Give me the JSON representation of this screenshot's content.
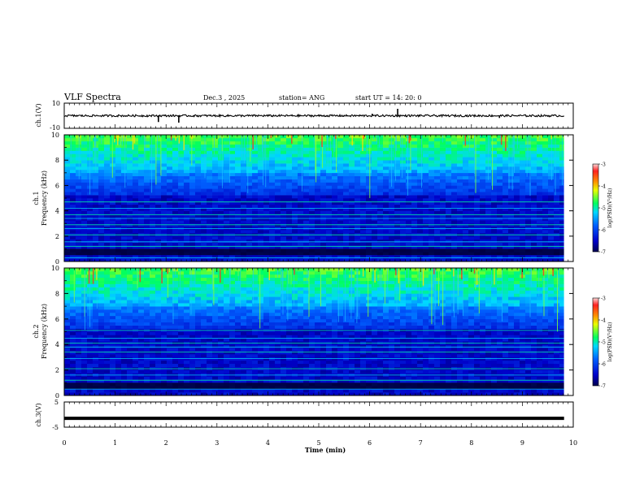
{
  "chart_data": {
    "type": "heatmap",
    "title": "VLF Spectra",
    "date": "Dec.3 , 2025",
    "station": "station= ANG",
    "start": "start UT = 14: 20: 0",
    "xlabel": "Time (min)",
    "xlim": [
      0,
      10
    ],
    "xticks": [
      "0",
      "1",
      "2",
      "3",
      "4",
      "5",
      "6",
      "7",
      "8",
      "9",
      "10"
    ],
    "panels": {
      "ch1_waveform": {
        "ylabel": "ch.1(V)",
        "ylim": [
          -10,
          10
        ],
        "yticks": [
          "10",
          "-10"
        ],
        "trace_level": 0,
        "spikes": [
          {
            "t": 1.85,
            "v": -5.0
          },
          {
            "t": 2.25,
            "v": -5.5
          },
          {
            "t": 6.55,
            "v": 5.5
          },
          {
            "t": 6.05,
            "v": 1.6
          },
          {
            "t": 8.55,
            "v": -1.8
          }
        ]
      },
      "ch1_spectrogram": {
        "ylabel_top": "ch.1",
        "ylabel": "Frequency (kHz)",
        "ylim": [
          0,
          10
        ],
        "yticks": [
          "0",
          "2",
          "4",
          "6",
          "8",
          "10"
        ],
        "lines_khz": [
          0.3,
          1.2,
          1.55,
          2.1,
          2.6,
          2.9,
          3.4,
          3.7,
          4.2,
          4.7
        ]
      },
      "ch2_spectrogram": {
        "ylabel_top": "ch.2",
        "ylabel": "Frequency (kHz)",
        "ylim": [
          0,
          10
        ],
        "yticks": [
          "0",
          "2",
          "4",
          "6",
          "8",
          "10"
        ],
        "lines_khz": [
          0.5,
          1.2,
          1.6,
          2.1,
          2.9,
          3.4,
          3.8,
          4.1,
          4.5,
          5.1
        ]
      },
      "ch3_waveform": {
        "ylabel": "ch.3(V)",
        "ylim": [
          -5,
          5
        ],
        "yticks": [
          "5",
          "-5"
        ],
        "trace_level": -1.5
      }
    },
    "colorbar": {
      "label": "log(PSD)(V²/Hz)",
      "range": [
        -7,
        -3
      ],
      "ticks": [
        "-3",
        "-4",
        "-5",
        "-6",
        "-7"
      ]
    }
  }
}
